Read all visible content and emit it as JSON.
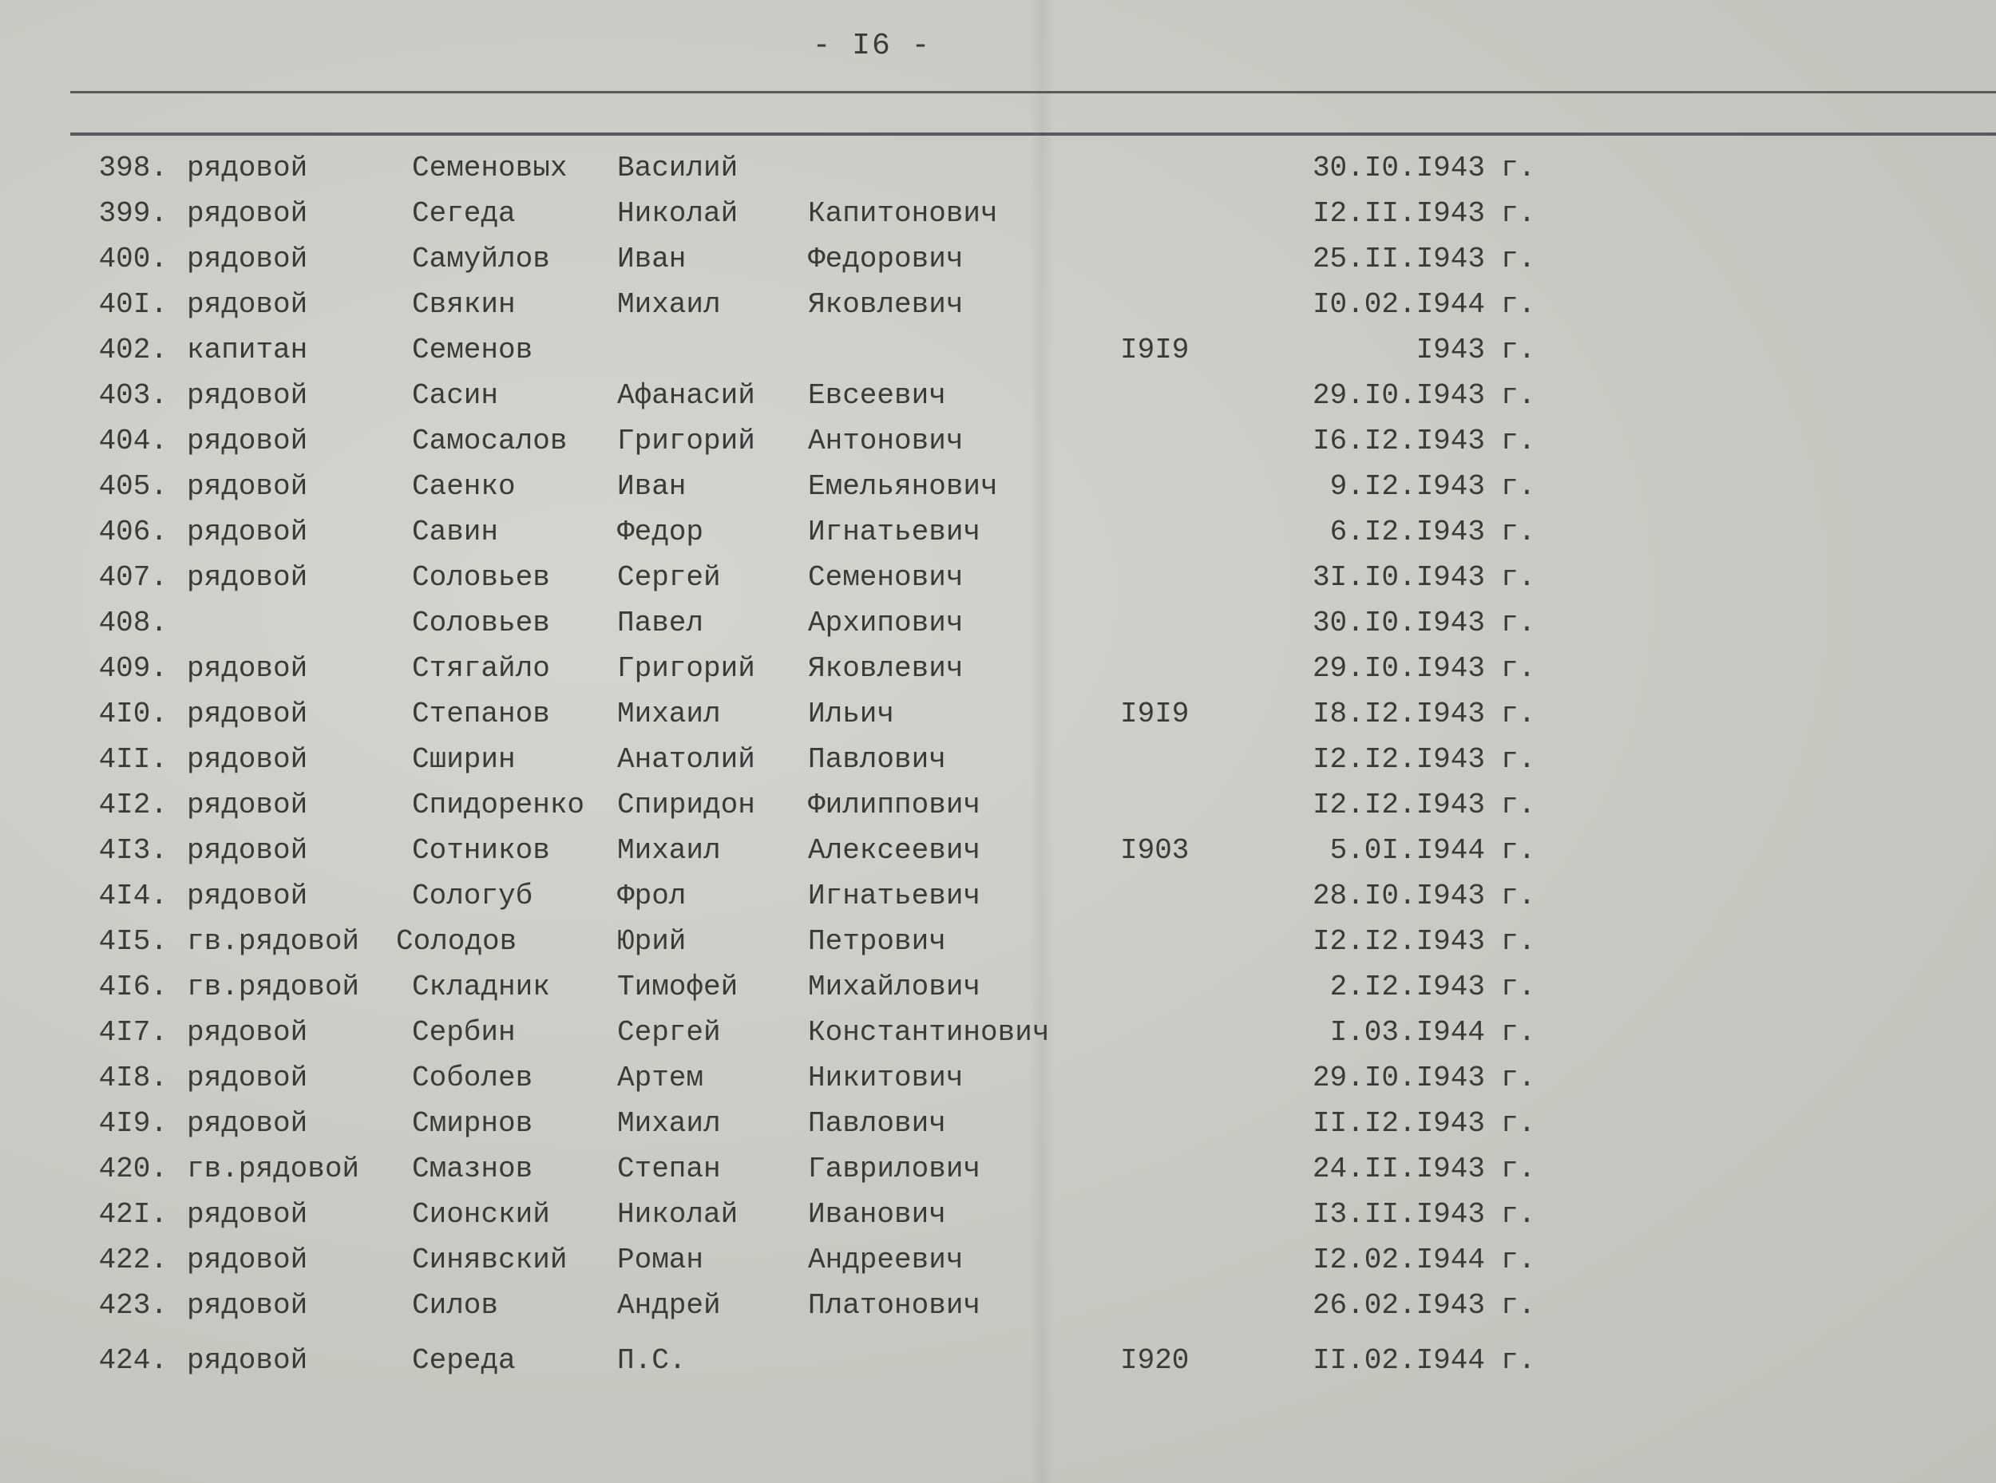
{
  "page_number": "- I6 -",
  "rows": [
    {
      "num": "398.",
      "rank": "рядовой",
      "surname": "Семеновых",
      "first": "Василий",
      "patronymic": "",
      "year": "",
      "date": "30.I0.I943",
      "suffix": "г."
    },
    {
      "num": "399.",
      "rank": "рядовой",
      "surname": "Сегеда",
      "first": "Николай",
      "patronymic": "Капитонович",
      "year": "",
      "date": "I2.II.I943",
      "suffix": "г."
    },
    {
      "num": "400.",
      "rank": "рядовой",
      "surname": "Самуйлов",
      "first": "Иван",
      "patronymic": "Федорович",
      "year": "",
      "date": "25.II.I943",
      "suffix": "г."
    },
    {
      "num": "40I.",
      "rank": "рядовой",
      "surname": "Свякин",
      "first": "Михаил",
      "patronymic": "Яковлевич",
      "year": "",
      "date": "I0.02.I944",
      "suffix": "г."
    },
    {
      "num": "402.",
      "rank": "капитан",
      "surname": "Семенов",
      "first": "",
      "patronymic": "",
      "year": "I9I9",
      "date": "I943",
      "suffix": "г."
    },
    {
      "num": "403.",
      "rank": "рядовой",
      "surname": "Сасин",
      "first": "Афанасий",
      "patronymic": "Евсеевич",
      "year": "",
      "date": "29.I0.I943",
      "suffix": "г."
    },
    {
      "num": "404.",
      "rank": "рядовой",
      "surname": "Самосалов",
      "first": "Григорий",
      "patronymic": "Антонович",
      "year": "",
      "date": "I6.I2.I943",
      "suffix": "г."
    },
    {
      "num": "405.",
      "rank": "рядовой",
      "surname": "Саенко",
      "first": "Иван",
      "patronymic": "Емельянович",
      "year": "",
      "date": "9.I2.I943",
      "suffix": "г."
    },
    {
      "num": "406.",
      "rank": "рядовой",
      "surname": "Савин",
      "first": "Федор",
      "patronymic": "Игнатьевич",
      "year": "",
      "date": "6.I2.I943",
      "suffix": "г."
    },
    {
      "num": "407.",
      "rank": "рядовой",
      "surname": "Соловьев",
      "first": "Сергей",
      "patronymic": "Семенович",
      "year": "",
      "date": "3I.I0.I943",
      "suffix": "г."
    },
    {
      "num": "408.",
      "rank": "",
      "surname": "Соловьев",
      "first": "Павел",
      "patronymic": "Архипович",
      "year": "",
      "date": "30.I0.I943",
      "suffix": "г."
    },
    {
      "num": "409.",
      "rank": "рядовой",
      "surname": "Стягайло",
      "first": "Григорий",
      "patronymic": "Яковлевич",
      "year": "",
      "date": "29.I0.I943",
      "suffix": "г."
    },
    {
      "num": "4I0.",
      "rank": "рядовой",
      "surname": "Степанов",
      "first": "Михаил",
      "patronymic": "Ильич",
      "year": "I9I9",
      "date": "I8.I2.I943",
      "suffix": "г."
    },
    {
      "num": "4II.",
      "rank": "рядовой",
      "surname": "Сширин",
      "first": "Анатолий",
      "patronymic": "Павлович",
      "year": "",
      "date": "I2.I2.I943",
      "suffix": "г."
    },
    {
      "num": "4I2.",
      "rank": "рядовой",
      "surname": "Спидоренко",
      "first": "Спиридон",
      "patronymic": "Филиппович",
      "year": "",
      "date": "I2.I2.I943",
      "suffix": "г."
    },
    {
      "num": "4I3.",
      "rank": "рядовой",
      "surname": "Сотников",
      "first": "Михаил",
      "patronymic": "Алексеевич",
      "year": "I903",
      "date": "5.0I.I944",
      "suffix": "г."
    },
    {
      "num": "4I4.",
      "rank": "рядовой",
      "surname": "Сологуб",
      "first": "Фрол",
      "patronymic": "Игнатьевич",
      "year": "",
      "date": "28.I0.I943",
      "suffix": "г."
    },
    {
      "num": "4I5.",
      "rank": "гв.рядовой",
      "surname": "Солодов",
      "first": "Юрий",
      "patronymic": "Петрович",
      "year": "",
      "date": "I2.I2.I943",
      "suffix": "г."
    },
    {
      "num": "4I6.",
      "rank": "гв.рядовой",
      "surname": "Складник",
      "first": "Тимофей",
      "patronymic": "Михайлович",
      "year": "",
      "date": "2.I2.I943",
      "suffix": "г."
    },
    {
      "num": "4I7.",
      "rank": "рядовой",
      "surname": "Сербин",
      "first": "Сергей",
      "patronymic": "Константинович",
      "year": "",
      "date": "I.03.I944",
      "suffix": "г."
    },
    {
      "num": "4I8.",
      "rank": "рядовой",
      "surname": "Соболев",
      "first": "Артем",
      "patronymic": "Никитович",
      "year": "",
      "date": "29.I0.I943",
      "suffix": "г."
    },
    {
      "num": "4I9.",
      "rank": "рядовой",
      "surname": "Смирнов",
      "first": "Михаил",
      "patronymic": "Павлович",
      "year": "",
      "date": "II.I2.I943",
      "suffix": "г."
    },
    {
      "num": "420.",
      "rank": "гв.рядовой",
      "surname": "Смазнов",
      "first": "Степан",
      "patronymic": "Гаврилович",
      "year": "",
      "date": "24.II.I943",
      "suffix": "г."
    },
    {
      "num": "42I.",
      "rank": "рядовой",
      "surname": "Сионский",
      "first": "Николай",
      "patronymic": "Иванович",
      "year": "",
      "date": "I3.II.I943",
      "suffix": "г."
    },
    {
      "num": "422.",
      "rank": "рядовой",
      "surname": "Синявский",
      "first": "Роман",
      "patronymic": "Андреевич",
      "year": "",
      "date": "I2.02.I944",
      "suffix": "г."
    },
    {
      "num": "423.",
      "rank": "рядовой",
      "surname": "Силов",
      "first": "Андрей",
      "patronymic": "Платонович",
      "year": "",
      "date": "26.02.I943",
      "suffix": "г."
    },
    {
      "num": "424.",
      "rank": "рядовой",
      "surname": "Середа",
      "first": "П.С.",
      "patronymic": "",
      "year": "I920",
      "date": "II.02.I944",
      "suffix": "г."
    }
  ]
}
